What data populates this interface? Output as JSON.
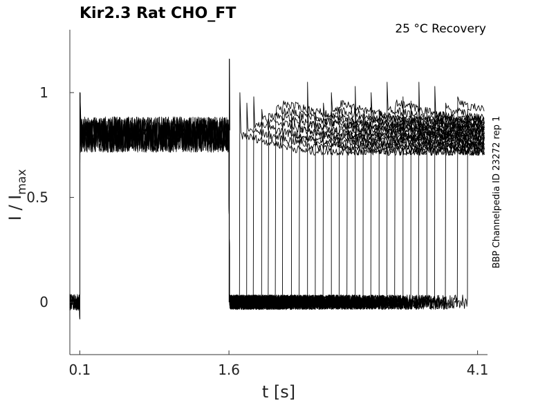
{
  "chart_data": {
    "type": "line",
    "title": "Kir2.3  Rat  CHO_FT",
    "subtitle": "25 °C  Recovery",
    "xlabel": "t [s]",
    "ylabel_main": "I / I",
    "ylabel_sub": "max",
    "side_note": "BBP Channelpedia ID 23272 rep 1",
    "xlim": [
      0.0,
      4.2
    ],
    "ylim": [
      -0.25,
      1.3
    ],
    "x_ticks": [
      0.1,
      1.6,
      4.1
    ],
    "x_tick_labels": [
      "0.1",
      "1.6",
      "4.1"
    ],
    "y_ticks": [
      0,
      0.5,
      1
    ],
    "y_tick_labels": [
      "0",
      "0.5",
      "1"
    ],
    "grid": false,
    "series_color": "#000000",
    "baseline": 0.0,
    "prepulse_start": 0.1,
    "prepulse_level": 0.8,
    "prepulse_peak": 1.0,
    "test_pulse_start": 1.6,
    "test_pulse_peak": 1.16,
    "sweep_ends": [
      1.71,
      1.78,
      1.85,
      1.93,
      2.0,
      2.07,
      2.14,
      2.23,
      2.31,
      2.39,
      2.47,
      2.55,
      2.63,
      2.71,
      2.79,
      2.87,
      2.95,
      3.03,
      3.11,
      3.19,
      3.27,
      3.35,
      3.43,
      3.51,
      3.59,
      3.67,
      3.78,
      3.9,
      4.0
    ],
    "sweep_peaks": [
      1.0,
      0.95,
      0.98,
      0.92,
      0.9,
      0.88,
      0.93,
      0.9,
      0.9,
      1.05,
      0.9,
      0.95,
      1.0,
      0.93,
      0.88,
      1.03,
      0.9,
      1.0,
      0.92,
      1.05,
      0.92,
      0.98,
      0.96,
      1.05,
      0.9,
      1.03,
      0.95,
      0.98,
      0.92
    ]
  }
}
